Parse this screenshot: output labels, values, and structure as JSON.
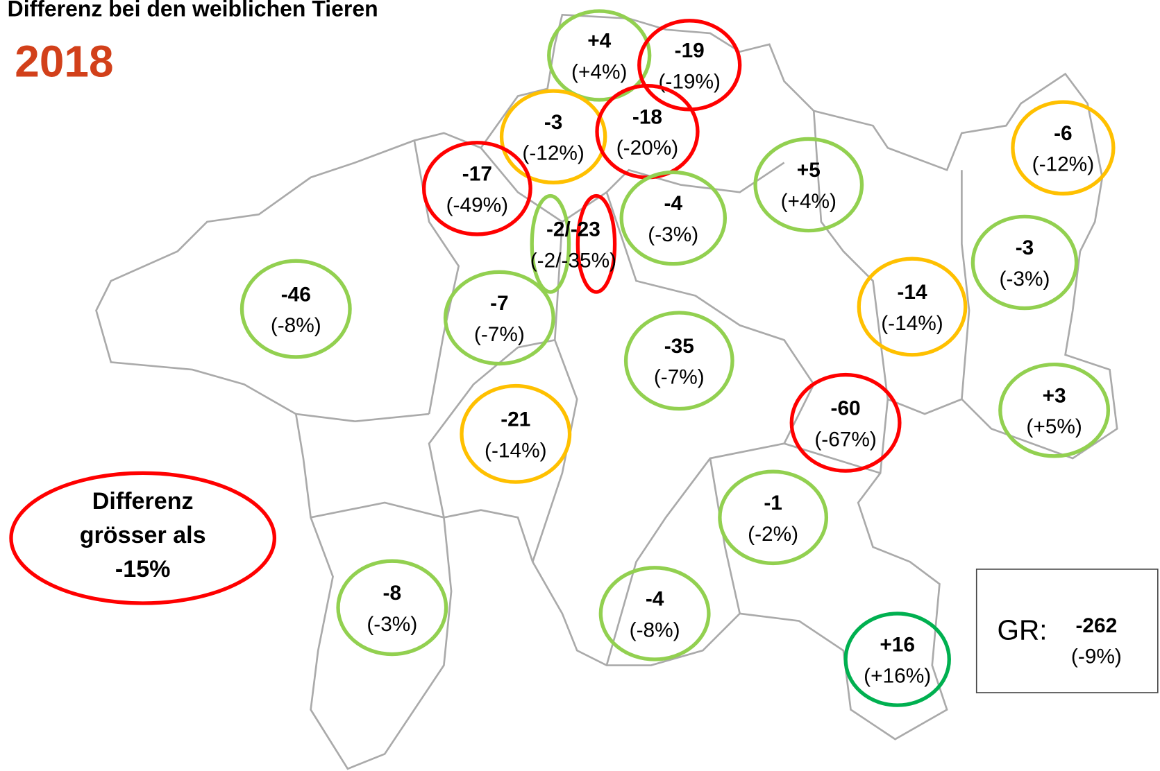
{
  "header": {
    "title": "Differenz bei den weiblichen Tieren",
    "year": "2018"
  },
  "legend": {
    "lines": [
      "Differenz",
      "grösser als",
      "-15%"
    ],
    "color": "#ff0000"
  },
  "total": {
    "label": "GR:",
    "diff": "-262",
    "pct": "(-9%)"
  },
  "regions": [
    {
      "diff": "+4",
      "pct": "(+4%)",
      "colors": [
        "#92d050"
      ]
    },
    {
      "diff": "-19",
      "pct": "(-19%)",
      "colors": [
        "#ff0000"
      ]
    },
    {
      "diff": "-3",
      "pct": "(-12%)",
      "colors": [
        "#ffc000"
      ]
    },
    {
      "diff": "-18",
      "pct": "(-20%)",
      "colors": [
        "#ff0000"
      ]
    },
    {
      "diff": "-17",
      "pct": "(-49%)",
      "colors": [
        "#ff0000"
      ]
    },
    {
      "diff": "-2/-23",
      "pct": "(-2/-35%)",
      "colors": [
        "#92d050",
        "#ff0000"
      ]
    },
    {
      "diff": "-4",
      "pct": "(-3%)",
      "colors": [
        "#92d050"
      ]
    },
    {
      "diff": "+5",
      "pct": "(+4%)",
      "colors": [
        "#92d050"
      ]
    },
    {
      "diff": "-6",
      "pct": "(-12%)",
      "colors": [
        "#ffc000"
      ]
    },
    {
      "diff": "-3",
      "pct": "(-3%)",
      "colors": [
        "#92d050"
      ]
    },
    {
      "diff": "-14",
      "pct": "(-14%)",
      "colors": [
        "#ffc000"
      ]
    },
    {
      "diff": "-46",
      "pct": "(-8%)",
      "colors": [
        "#92d050"
      ]
    },
    {
      "diff": "-7",
      "pct": "(-7%)",
      "colors": [
        "#92d050"
      ]
    },
    {
      "diff": "-35",
      "pct": "(-7%)",
      "colors": [
        "#92d050"
      ]
    },
    {
      "diff": "-60",
      "pct": "(-67%)",
      "colors": [
        "#ff0000"
      ]
    },
    {
      "diff": "+3",
      "pct": "(+5%)",
      "colors": [
        "#92d050"
      ]
    },
    {
      "diff": "-21",
      "pct": "(-14%)",
      "colors": [
        "#ffc000"
      ]
    },
    {
      "diff": "-1",
      "pct": "(-2%)",
      "colors": [
        "#92d050"
      ]
    },
    {
      "diff": "-8",
      "pct": "(-3%)",
      "colors": [
        "#92d050"
      ]
    },
    {
      "diff": "-4",
      "pct": "(-8%)",
      "colors": [
        "#92d050"
      ]
    },
    {
      "diff": "+16",
      "pct": "(+16%)",
      "colors": [
        "#00b050"
      ]
    }
  ]
}
